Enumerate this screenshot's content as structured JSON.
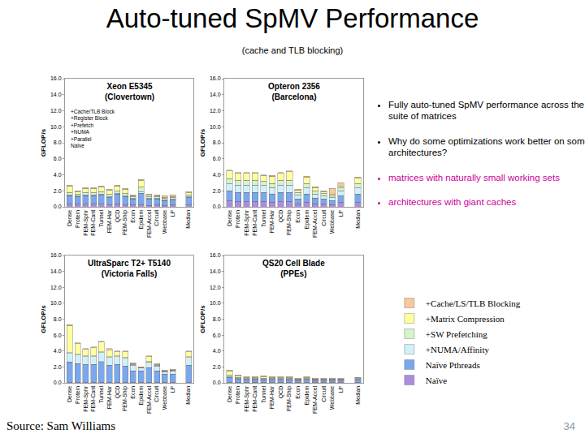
{
  "slide": {
    "title": "Auto-tuned SpMV Performance",
    "subtitle": "(cache and TLB blocking)",
    "bullets": [
      {
        "text": "Fully auto-tuned SpMV performance across the suite of matrices",
        "color": "#000000"
      },
      {
        "text": "Why do some optimizations work better on some architectures?",
        "color": "#000000"
      },
      {
        "text": "matrices with naturally small working sets",
        "color": "#cc0099"
      },
      {
        "text": "architectures with giant caches",
        "color": "#cc0099"
      }
    ],
    "source": "Source: Sam Williams",
    "page": "34"
  },
  "chart_data": [
    {
      "type": "bar",
      "title": "Xeon E5345\n(Clovertown)",
      "y_label": "GFLOP/s",
      "stacked": true,
      "grid": false,
      "legend": "right",
      "annotations": [
        "+Cache/TLB Block",
        "+Register Block",
        "+Prefetch",
        "+NUMA",
        "+Parallel",
        "Naïve"
      ],
      "categories": [
        "Dense",
        "Protein",
        "FEM-Sphr",
        "FEM-Cant",
        "Tunnel",
        "FEM-Har",
        "QCD",
        "FEM-Ship",
        "Econ",
        "Epidem",
        "FEM-Accel",
        "Circuit",
        "Webbase",
        "LP",
        null,
        "Median"
      ],
      "ylim": [
        0,
        16
      ],
      "yticks": [
        {
          "value": 0,
          "label": "0.0"
        },
        {
          "value": 2,
          "label": "2.0"
        },
        {
          "value": 4,
          "label": "4.0"
        },
        {
          "value": 6,
          "label": "6.0"
        },
        {
          "value": 8,
          "label": "8.0"
        },
        {
          "value": 10,
          "label": "10.0"
        },
        {
          "value": 12,
          "label": "12.0"
        },
        {
          "value": 14,
          "label": "14.0"
        },
        {
          "value": 16,
          "label": "16.0"
        }
      ],
      "series": [
        {
          "name": "Naïve",
          "color": "#a98ee0",
          "values": [
            0.4,
            0.4,
            0.4,
            0.4,
            0.4,
            0.3,
            0.4,
            0.3,
            0.3,
            0.3,
            0.2,
            0.3,
            0.2,
            0.3,
            null,
            0.3
          ]
        },
        {
          "name": "Naïve Pthreads",
          "color": "#79a8ee",
          "values": [
            1.0,
            0.9,
            1.0,
            1.0,
            1.1,
            0.9,
            1.2,
            1.0,
            0.7,
            1.4,
            0.8,
            0.7,
            0.6,
            0.6,
            null,
            0.9
          ]
        },
        {
          "name": "+NUMA/Affinity",
          "color": "#d2f0fb",
          "values": [
            0.1,
            0.1,
            0.1,
            0.1,
            0.1,
            0.1,
            0.1,
            0.1,
            0.1,
            0.2,
            0.1,
            0.1,
            0.1,
            0.1,
            null,
            0.1
          ]
        },
        {
          "name": "+SW Prefetching",
          "color": "#d4f5c8",
          "values": [
            0.3,
            0.2,
            0.3,
            0.3,
            0.3,
            0.3,
            0.3,
            0.3,
            0.2,
            0.6,
            0.2,
            0.2,
            0.2,
            0.2,
            null,
            0.2
          ]
        },
        {
          "name": "+Matrix Compression",
          "color": "#ffff9e",
          "values": [
            0.8,
            0.3,
            0.5,
            0.5,
            0.6,
            0.5,
            0.6,
            0.5,
            0.1,
            0.8,
            0.2,
            0.1,
            0.1,
            0.1,
            null,
            0.3
          ]
        },
        {
          "name": "+Cache/LS/TLB Blocking",
          "color": "#f9c89b",
          "values": [
            0.1,
            0.1,
            0.1,
            0.1,
            0.1,
            0.1,
            0.1,
            0.1,
            0.1,
            0.1,
            0.1,
            0.1,
            0.2,
            0.2,
            null,
            0.1
          ]
        }
      ]
    },
    {
      "type": "bar",
      "title": "Opteron 2356\n(Barcelona)",
      "y_label": "GFLOP/s",
      "stacked": true,
      "grid": false,
      "categories": [
        "Dense",
        "Protein",
        "FEM-Sphr",
        "FEM-Cant",
        "Tunnel",
        "FEM-Har",
        "QCD",
        "FEM-Ship",
        "Econ",
        "Epidem",
        "FEM-Accel",
        "Circuit",
        "Webbase",
        "LP",
        null,
        "Median"
      ],
      "ylim": [
        0,
        16
      ],
      "yticks": [
        {
          "value": 0,
          "label": "0.0"
        },
        {
          "value": 2,
          "label": "2.0"
        },
        {
          "value": 4,
          "label": "4.0"
        },
        {
          "value": 6,
          "label": "6.0"
        },
        {
          "value": 8,
          "label": "8.0"
        },
        {
          "value": 10,
          "label": "10.0"
        },
        {
          "value": 12,
          "label": "12.0"
        },
        {
          "value": 14,
          "label": "14.0"
        },
        {
          "value": 16,
          "label": "16.0"
        }
      ],
      "series": [
        {
          "name": "Naïve",
          "color": "#a98ee0",
          "values": [
            0.8,
            0.7,
            0.7,
            0.7,
            0.7,
            0.6,
            0.7,
            0.7,
            0.4,
            0.6,
            0.4,
            0.4,
            0.3,
            0.6,
            null,
            0.6
          ]
        },
        {
          "name": "Naïve Pthreads",
          "color": "#79a8ee",
          "values": [
            1.2,
            1.1,
            1.1,
            1.1,
            1.1,
            1.0,
            1.1,
            1.1,
            0.6,
            1.0,
            0.7,
            0.6,
            0.5,
            0.8,
            null,
            1.0
          ]
        },
        {
          "name": "+NUMA/Affinity",
          "color": "#d2f0fb",
          "values": [
            0.9,
            0.9,
            0.9,
            0.9,
            0.9,
            0.8,
            0.9,
            0.9,
            0.5,
            0.8,
            0.5,
            0.4,
            0.4,
            0.6,
            null,
            0.8
          ]
        },
        {
          "name": "+SW Prefetching",
          "color": "#d4f5c8",
          "values": [
            0.6,
            0.6,
            0.6,
            0.6,
            0.5,
            0.5,
            0.6,
            0.6,
            0.3,
            0.5,
            0.4,
            0.3,
            0.2,
            0.4,
            null,
            0.5
          ]
        },
        {
          "name": "+Matrix Compression",
          "color": "#ffff9e",
          "values": [
            1.0,
            0.9,
            0.9,
            0.9,
            0.7,
            0.9,
            0.9,
            1.1,
            0.3,
            0.8,
            0.4,
            0.2,
            0.2,
            0.2,
            null,
            0.7
          ]
        },
        {
          "name": "+Cache/LS/TLB Blocking",
          "color": "#f9c89b",
          "values": [
            0.1,
            0.1,
            0.1,
            0.1,
            0.1,
            0.1,
            0.1,
            0.1,
            0.1,
            0.1,
            0.1,
            0.1,
            0.7,
            0.4,
            null,
            0.1
          ]
        }
      ]
    },
    {
      "type": "bar",
      "title": "UltraSparc T2+ T5140\n(Victoria Falls)",
      "y_label": "GFLOP/s",
      "stacked": true,
      "grid": false,
      "categories": [
        "Dense",
        "Protein",
        "FEM-Sphr",
        "FEM-Cant",
        "Tunnel",
        "FEM-Har",
        "QCD",
        "FEM-Ship",
        "Econ",
        "Epidem",
        "FEM-Accel",
        "Circuit",
        "Webbase",
        "LP",
        null,
        "Median"
      ],
      "ylim": [
        0,
        16
      ],
      "yticks": [
        {
          "value": 0,
          "label": "0.0"
        },
        {
          "value": 2,
          "label": "2.0"
        },
        {
          "value": 4,
          "label": "4.0"
        },
        {
          "value": 6,
          "label": "6.0"
        },
        {
          "value": 8,
          "label": "8.0"
        },
        {
          "value": 10,
          "label": "10.0"
        },
        {
          "value": 12,
          "label": "12.0"
        },
        {
          "value": 14,
          "label": "14.0"
        },
        {
          "value": 16,
          "label": "16.0"
        }
      ],
      "series": [
        {
          "name": "Naïve",
          "color": "#a98ee0",
          "values": [
            0.1,
            0.1,
            0.1,
            0.1,
            0.1,
            0.1,
            0.1,
            0.1,
            0.1,
            0.1,
            0.1,
            0.1,
            0.1,
            0.1,
            null,
            0.1
          ]
        },
        {
          "name": "Naïve Pthreads",
          "color": "#79a8ee",
          "values": [
            2.5,
            2.3,
            2.2,
            2.2,
            2.6,
            2.1,
            2.2,
            2.0,
            1.4,
            1.4,
            1.8,
            1.4,
            1.0,
            1.0,
            null,
            2.1
          ]
        },
        {
          "name": "+NUMA/Affinity",
          "color": "#d2f0fb",
          "values": [
            1.1,
            1.1,
            1.0,
            1.0,
            1.1,
            1.0,
            1.0,
            1.0,
            0.7,
            0.4,
            0.7,
            0.6,
            0.3,
            0.4,
            null,
            1.0
          ]
        },
        {
          "name": "+SW Prefetching",
          "color": "#d4f5c8",
          "values": [
            0.1,
            0.1,
            0.1,
            0.1,
            0.1,
            0.1,
            0.1,
            0.1,
            0.1,
            0.0,
            0.1,
            0.1,
            0.1,
            0.1,
            null,
            0.1
          ]
        },
        {
          "name": "+Matrix Compression",
          "color": "#ffff9e",
          "values": [
            3.4,
            1.3,
            0.8,
            1.0,
            1.2,
            0.8,
            0.5,
            0.7,
            0.1,
            0.0,
            0.6,
            0.1,
            0.0,
            0.0,
            null,
            0.6
          ]
        },
        {
          "name": "+Cache/LS/TLB Blocking",
          "color": "#f9c89b",
          "values": [
            0.1,
            0.1,
            0.1,
            0.1,
            0.1,
            0.2,
            0.1,
            0.1,
            0.1,
            0.1,
            0.1,
            0.1,
            0.1,
            0.1,
            null,
            0.1
          ]
        }
      ]
    },
    {
      "type": "bar",
      "title": "QS20 Cell Blade\n(PPEs)",
      "y_label": "GFLOP/s",
      "stacked": true,
      "grid": false,
      "categories": [
        "Dense",
        "Protein",
        "FEM-Sphr",
        "FEM-Cant",
        "Tunnel",
        "FEM-Har",
        "QCD",
        "FEM-Ship",
        "Econ",
        "Epidem",
        "FEM-Accel",
        "Circuit",
        "Webbase",
        "LP",
        null,
        "Median"
      ],
      "ylim": [
        0,
        16
      ],
      "yticks": [
        {
          "value": 0,
          "label": "0.0"
        },
        {
          "value": 2,
          "label": "2.0"
        },
        {
          "value": 4,
          "label": "4.0"
        },
        {
          "value": 6,
          "label": "6.0"
        },
        {
          "value": 8,
          "label": "8.0"
        },
        {
          "value": 10,
          "label": "10.0"
        },
        {
          "value": 12,
          "label": "12.0"
        },
        {
          "value": 14,
          "label": "14.0"
        },
        {
          "value": 16,
          "label": "16.0"
        }
      ],
      "series": [
        {
          "name": "Naïve",
          "color": "#a98ee0",
          "values": [
            0.1,
            0.1,
            0.1,
            0.1,
            0.1,
            0.1,
            0.1,
            0.1,
            0.1,
            0.1,
            0.1,
            0.1,
            0.1,
            0.1,
            null,
            0.1
          ]
        },
        {
          "name": "Naïve Pthreads",
          "color": "#79a8ee",
          "values": [
            0.6,
            0.4,
            0.3,
            0.3,
            0.3,
            0.3,
            0.3,
            0.3,
            0.2,
            0.3,
            0.2,
            0.2,
            0.2,
            0.2,
            null,
            0.3
          ]
        },
        {
          "name": "+NUMA/Affinity",
          "color": "#d2f0fb",
          "values": [
            0.1,
            0.1,
            0.1,
            0.1,
            0.1,
            0.1,
            0.1,
            0.1,
            0.1,
            0.1,
            0.1,
            0.1,
            0.1,
            0.1,
            null,
            0.1
          ]
        },
        {
          "name": "+SW Prefetching",
          "color": "#d4f5c8",
          "values": [
            0.2,
            0.1,
            0.1,
            0.1,
            0.1,
            0.1,
            0.1,
            0.1,
            0.1,
            0.1,
            0.1,
            0.1,
            0.1,
            0.1,
            null,
            0.1
          ]
        },
        {
          "name": "+Matrix Compression",
          "color": "#ffff9e",
          "values": [
            0.5,
            0.2,
            0.1,
            0.1,
            0.2,
            0.1,
            0.1,
            0.1,
            0.0,
            0.1,
            0.0,
            0.0,
            0.0,
            0.0,
            null,
            0.1
          ]
        },
        {
          "name": "+Cache/LS/TLB Blocking",
          "color": "#f9c89b",
          "values": [
            0.1,
            0.1,
            0.1,
            0.1,
            0.1,
            0.1,
            0.1,
            0.1,
            0.1,
            0.1,
            0.1,
            0.1,
            0.1,
            0.1,
            null,
            0.0
          ]
        }
      ]
    }
  ]
}
